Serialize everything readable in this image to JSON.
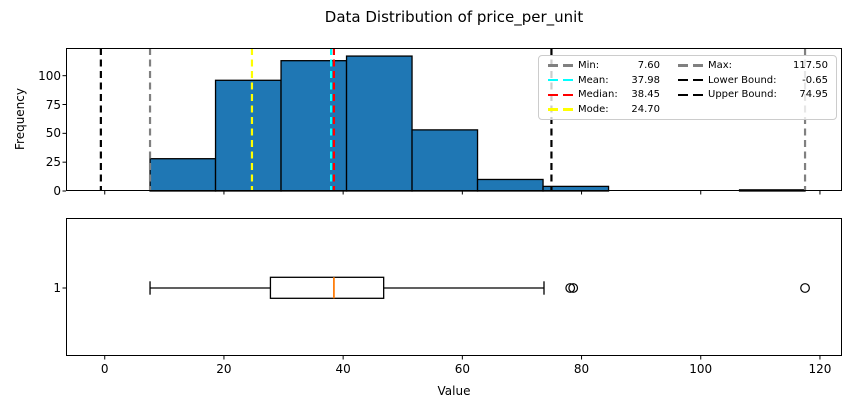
{
  "title": "Data Distribution of price_per_unit",
  "chart_data": [
    {
      "type": "histogram",
      "title": "Data Distribution of price_per_unit",
      "ylabel": "Frequency",
      "bin_edges": [
        7.6,
        18.59,
        29.58,
        40.57,
        51.56,
        62.55,
        73.54,
        84.53,
        95.52,
        106.51,
        117.5
      ],
      "frequencies": [
        28,
        96,
        113,
        117,
        53,
        10,
        4,
        0,
        0,
        1
      ],
      "bar_color": "#1f77b4",
      "bar_edge_color": "#000000",
      "xlim": [
        -6.5,
        123.7
      ],
      "ylim": [
        0,
        124
      ],
      "yticks": [
        0,
        25,
        50,
        75,
        100
      ],
      "grid": false,
      "legend_position": "upper right",
      "stat_lines": [
        {
          "label": "Min",
          "value": 7.6,
          "display": "7.60",
          "color": "#808080"
        },
        {
          "label": "Mean",
          "value": 37.98,
          "display": "37.98",
          "color": "#00ffff"
        },
        {
          "label": "Median",
          "value": 38.45,
          "display": "38.45",
          "color": "#ff0000"
        },
        {
          "label": "Mode",
          "value": 24.7,
          "display": "24.70",
          "color": "#ffff00"
        },
        {
          "label": "Max",
          "value": 117.5,
          "display": "117.50",
          "color": "#808080"
        },
        {
          "label": "Lower Bound",
          "value": -0.65,
          "display": "-0.65",
          "color": "#000000"
        },
        {
          "label": "Upper Bound",
          "value": 74.95,
          "display": "74.95",
          "color": "#000000"
        }
      ],
      "legend_columns": [
        [
          "Min",
          "Mean",
          "Median",
          "Mode"
        ],
        [
          "Max",
          "Lower Bound",
          "Upper Bound"
        ]
      ]
    },
    {
      "type": "boxplot",
      "ytick": "1",
      "xlabel": "Value",
      "xticks": [
        0,
        20,
        40,
        60,
        80,
        100,
        120
      ],
      "whisker_low": 7.6,
      "q1": 27.8,
      "median": 38.45,
      "q3": 46.8,
      "whisker_high": 73.7,
      "outliers": [
        78.1,
        78.6,
        117.5
      ],
      "box_color": "#000000",
      "median_color": "#ff7f0e"
    }
  ]
}
